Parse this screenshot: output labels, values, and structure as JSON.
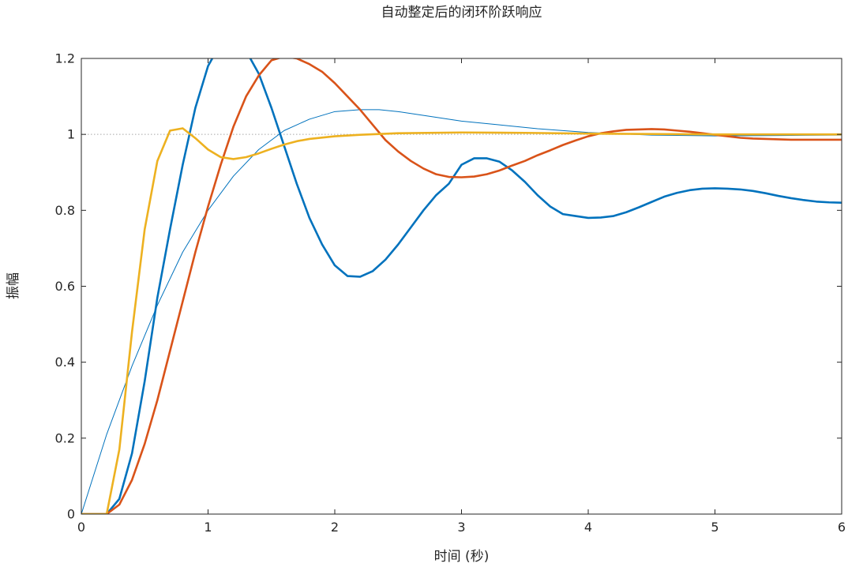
{
  "chart_data": {
    "type": "line",
    "title": "自动整定后的闭环阶跃响应",
    "xlabel": "时间 (秒)",
    "ylabel": "振幅",
    "xlim": [
      0,
      6
    ],
    "ylim": [
      0,
      1.2
    ],
    "xticks": [
      0,
      1,
      2,
      3,
      4,
      5,
      6
    ],
    "xtick_labels": [
      "0",
      "1",
      "2",
      "3",
      "4",
      "5",
      "6"
    ],
    "yticks": [
      0,
      0.2,
      0.4,
      0.6,
      0.8,
      1,
      1.2
    ],
    "ytick_labels": [
      "0",
      "0.2",
      "0.4",
      "0.6",
      "0.8",
      "1",
      "1.2"
    ],
    "grid": false,
    "reference_line": {
      "y": 1,
      "color": "#a6a6a6",
      "style": "dotted"
    },
    "series": [
      {
        "color": "#0072BD",
        "line_width": "thin",
        "x": [
          0,
          0.2,
          0.4,
          0.6,
          0.8,
          1.0,
          1.2,
          1.4,
          1.6,
          1.8,
          2.0,
          2.2,
          2.35,
          2.5,
          2.7,
          3.0,
          3.3,
          3.6,
          4.0,
          4.5,
          5.0,
          5.5,
          6.0
        ],
        "y": [
          0,
          0.21,
          0.39,
          0.55,
          0.69,
          0.8,
          0.89,
          0.96,
          1.01,
          1.04,
          1.06,
          1.065,
          1.065,
          1.06,
          1.05,
          1.035,
          1.025,
          1.015,
          1.005,
          0.998,
          0.996,
          0.997,
          0.998
        ]
      },
      {
        "color": "#0072BD",
        "line_width": "thick",
        "x": [
          0,
          0.2,
          0.3,
          0.4,
          0.5,
          0.6,
          0.7,
          0.8,
          0.9,
          1.0,
          1.05,
          1.1,
          1.2,
          1.3,
          1.4,
          1.5,
          1.6,
          1.7,
          1.8,
          1.9,
          2.0,
          2.1,
          2.2,
          2.3,
          2.4,
          2.5,
          2.6,
          2.7,
          2.8,
          2.9,
          3.0,
          3.1,
          3.2,
          3.3,
          3.4,
          3.5,
          3.6,
          3.7,
          3.8,
          3.9,
          4.0,
          4.1,
          4.2,
          4.3,
          4.4,
          4.5,
          4.6,
          4.7,
          4.8,
          4.9,
          5.0,
          5.1,
          5.2,
          5.3,
          5.4,
          5.5,
          5.6,
          5.7,
          5.8,
          5.9,
          6.0
        ],
        "y": [
          0,
          0,
          0.04,
          0.16,
          0.35,
          0.57,
          0.75,
          0.92,
          1.07,
          1.18,
          1.21,
          1.24,
          1.26,
          1.22,
          1.16,
          1.07,
          0.97,
          0.87,
          0.78,
          0.71,
          0.655,
          0.627,
          0.625,
          0.64,
          0.67,
          0.71,
          0.755,
          0.8,
          0.84,
          0.87,
          0.92,
          0.937,
          0.937,
          0.928,
          0.905,
          0.875,
          0.84,
          0.81,
          0.79,
          0.785,
          0.78,
          0.781,
          0.785,
          0.795,
          0.808,
          0.822,
          0.836,
          0.846,
          0.853,
          0.857,
          0.858,
          0.857,
          0.855,
          0.851,
          0.845,
          0.838,
          0.832,
          0.827,
          0.823,
          0.821,
          0.82
        ]
      },
      {
        "color": "#D95319",
        "line_width": "thick",
        "x": [
          0,
          0.2,
          0.3,
          0.4,
          0.5,
          0.6,
          0.7,
          0.8,
          0.9,
          1.0,
          1.1,
          1.2,
          1.3,
          1.4,
          1.5,
          1.6,
          1.7,
          1.8,
          1.9,
          2.0,
          2.1,
          2.2,
          2.3,
          2.4,
          2.5,
          2.6,
          2.7,
          2.8,
          2.9,
          3.0,
          3.1,
          3.2,
          3.3,
          3.4,
          3.5,
          3.6,
          3.7,
          3.8,
          3.9,
          4.0,
          4.1,
          4.2,
          4.3,
          4.4,
          4.5,
          4.6,
          4.7,
          4.8,
          4.9,
          5.0,
          5.1,
          5.2,
          5.3,
          5.4,
          5.5,
          5.6,
          5.7,
          5.8,
          5.9,
          6.0
        ],
        "y": [
          0,
          0,
          0.025,
          0.09,
          0.185,
          0.3,
          0.43,
          0.56,
          0.69,
          0.81,
          0.92,
          1.02,
          1.1,
          1.155,
          1.195,
          1.205,
          1.2,
          1.185,
          1.165,
          1.135,
          1.1,
          1.065,
          1.025,
          0.985,
          0.955,
          0.93,
          0.91,
          0.895,
          0.888,
          0.887,
          0.889,
          0.895,
          0.905,
          0.918,
          0.93,
          0.945,
          0.958,
          0.972,
          0.984,
          0.995,
          1.003,
          1.008,
          1.012,
          1.013,
          1.014,
          1.013,
          1.01,
          1.007,
          1.003,
          0.999,
          0.995,
          0.991,
          0.989,
          0.988,
          0.987,
          0.986,
          0.986,
          0.986,
          0.986,
          0.986
        ]
      },
      {
        "color": "#EDB120",
        "line_width": "thick",
        "x": [
          0,
          0.2,
          0.3,
          0.4,
          0.5,
          0.6,
          0.7,
          0.8,
          0.9,
          1.0,
          1.1,
          1.2,
          1.3,
          1.4,
          1.5,
          1.6,
          1.7,
          1.8,
          2.0,
          2.2,
          2.5,
          3.0,
          3.5,
          4.0,
          4.5,
          5.0,
          5.5,
          6.0
        ],
        "y": [
          0,
          0,
          0.17,
          0.48,
          0.75,
          0.93,
          1.01,
          1.016,
          0.99,
          0.96,
          0.94,
          0.935,
          0.94,
          0.95,
          0.962,
          0.973,
          0.982,
          0.988,
          0.995,
          0.999,
          1.003,
          1.005,
          1.004,
          1.002,
          1.001,
          1.0,
          1.0,
          1.0
        ]
      }
    ]
  }
}
